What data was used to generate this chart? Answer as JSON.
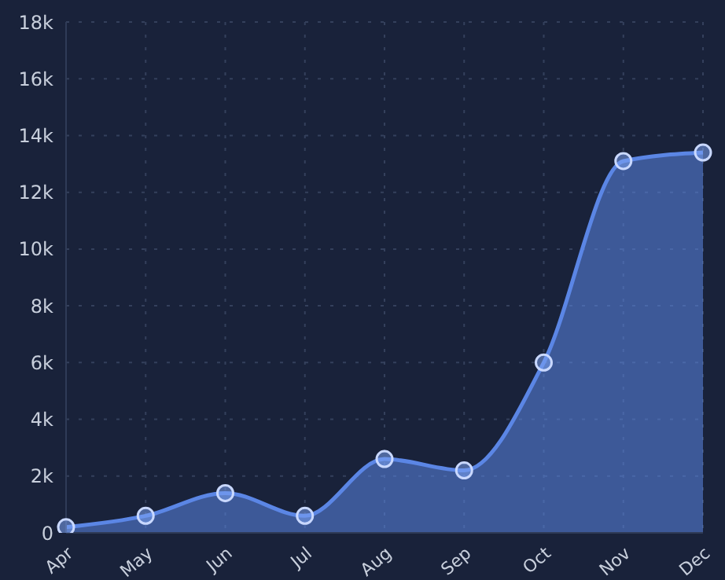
{
  "chart_data": {
    "type": "area",
    "categories": [
      "Apr",
      "May",
      "Jun",
      "Jul",
      "Aug",
      "Sep",
      "Oct",
      "Nov",
      "Dec"
    ],
    "series": [
      {
        "color": "#5b86e5",
        "values": [
          200,
          600,
          1400,
          600,
          2600,
          2200,
          6000,
          13100,
          13400
        ]
      }
    ],
    "ylim": [
      0,
      18000
    ],
    "yticks": [
      0,
      {
        "value": 2000,
        "label": "2k"
      },
      {
        "value": 4000,
        "label": "4k"
      },
      {
        "value": 6000,
        "label": "6k"
      },
      {
        "value": 8000,
        "label": "8k"
      },
      {
        "value": 10000,
        "label": "10k"
      },
      {
        "value": 12000,
        "label": "12k"
      },
      {
        "value": 14000,
        "label": "14k"
      },
      {
        "value": 16000,
        "label": "16k"
      },
      {
        "value": 18000,
        "label": "18k"
      }
    ],
    "grid": true,
    "marker": "circle",
    "line_style": "solid",
    "legend": false
  }
}
